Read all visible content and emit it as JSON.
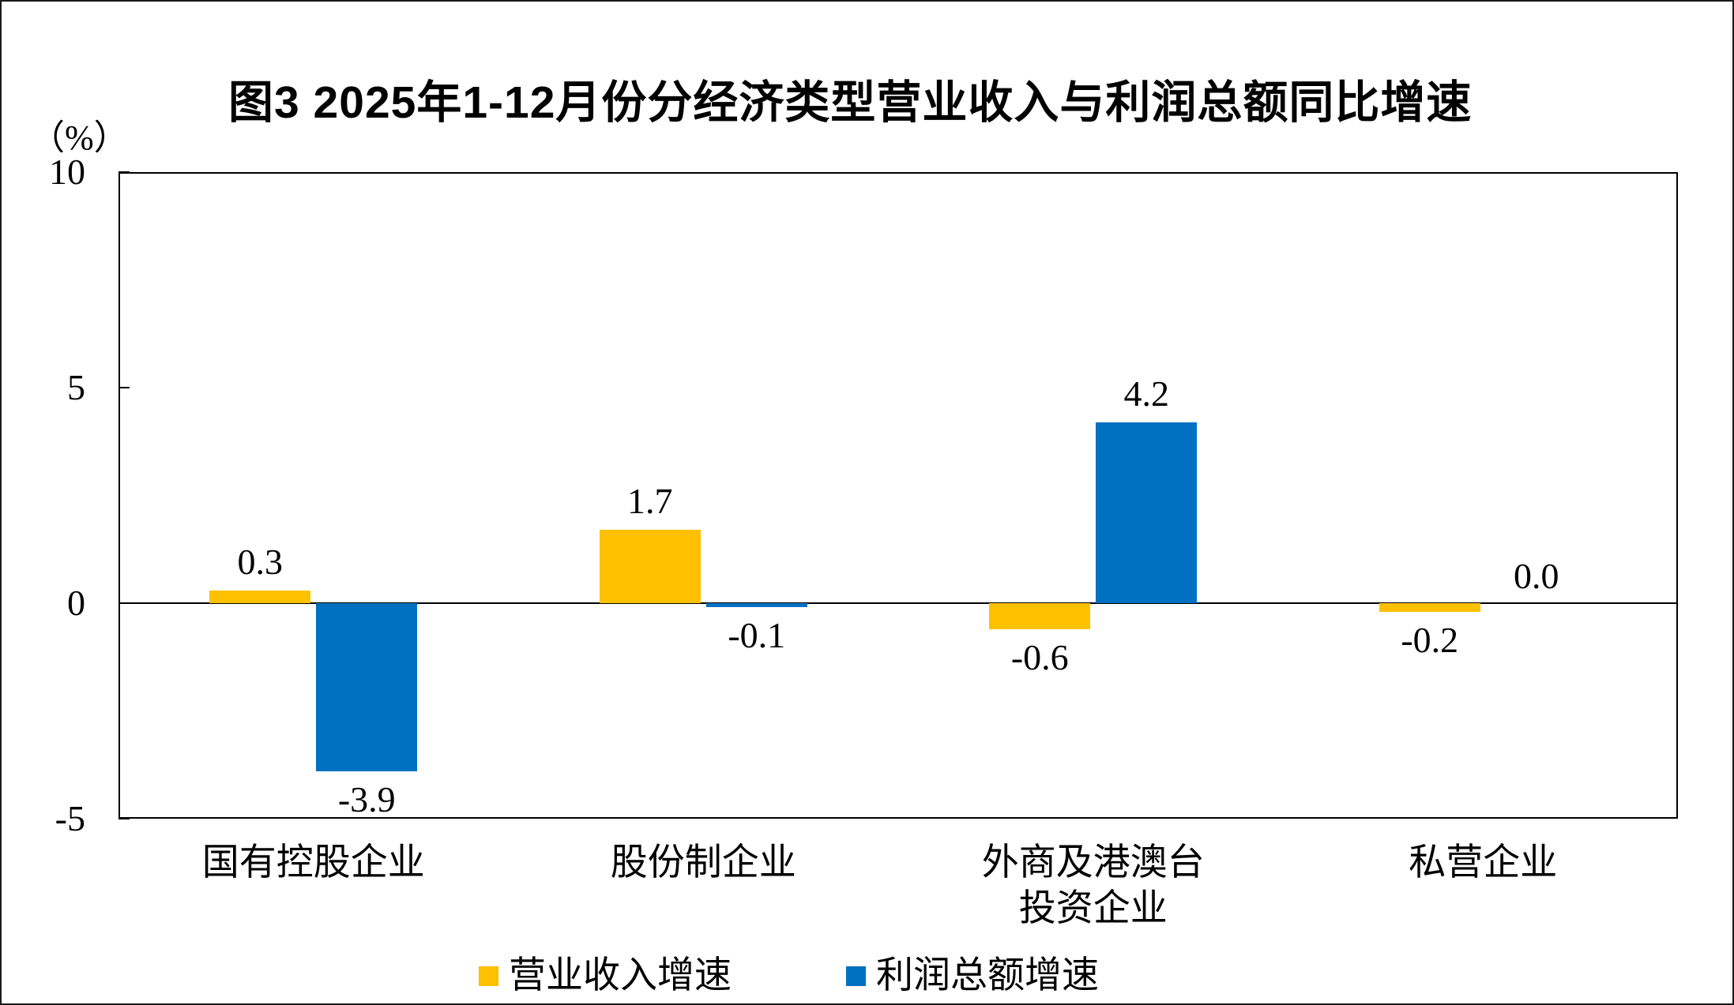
{
  "title": "图3 2025年1-12月份分经济类型营业收入与利润总额同比增速",
  "unit_label": "（%）",
  "chart_data": {
    "type": "bar",
    "categories": [
      "国有控股企业",
      "股份制企业",
      "外商及港澳台\n投资企业",
      "私营企业"
    ],
    "series": [
      {
        "name": "营业收入增速",
        "color": "#FFC000",
        "values": [
          0.3,
          1.7,
          -0.6,
          -0.2
        ]
      },
      {
        "name": "利润总额增速",
        "color": "#0070C0",
        "values": [
          -3.9,
          -0.1,
          4.2,
          0.0
        ]
      }
    ],
    "value_labels": [
      [
        "0.3",
        "1.7",
        "-0.6",
        "-0.2"
      ],
      [
        "-3.9",
        "-0.1",
        "4.2",
        "0.0"
      ]
    ],
    "title": "图3 2025年1-12月份分经济类型营业收入与利润总额同比增速",
    "xlabel": "",
    "ylabel": "（%）",
    "ylim": [
      -5,
      10
    ],
    "yticks": [
      10,
      5,
      0,
      -5
    ],
    "ytick_labels": [
      "10",
      "5",
      "0",
      "-5"
    ],
    "grid": false,
    "legend_position": "bottom",
    "axis_color": "#000000",
    "background_color": "#FFFFFF"
  }
}
